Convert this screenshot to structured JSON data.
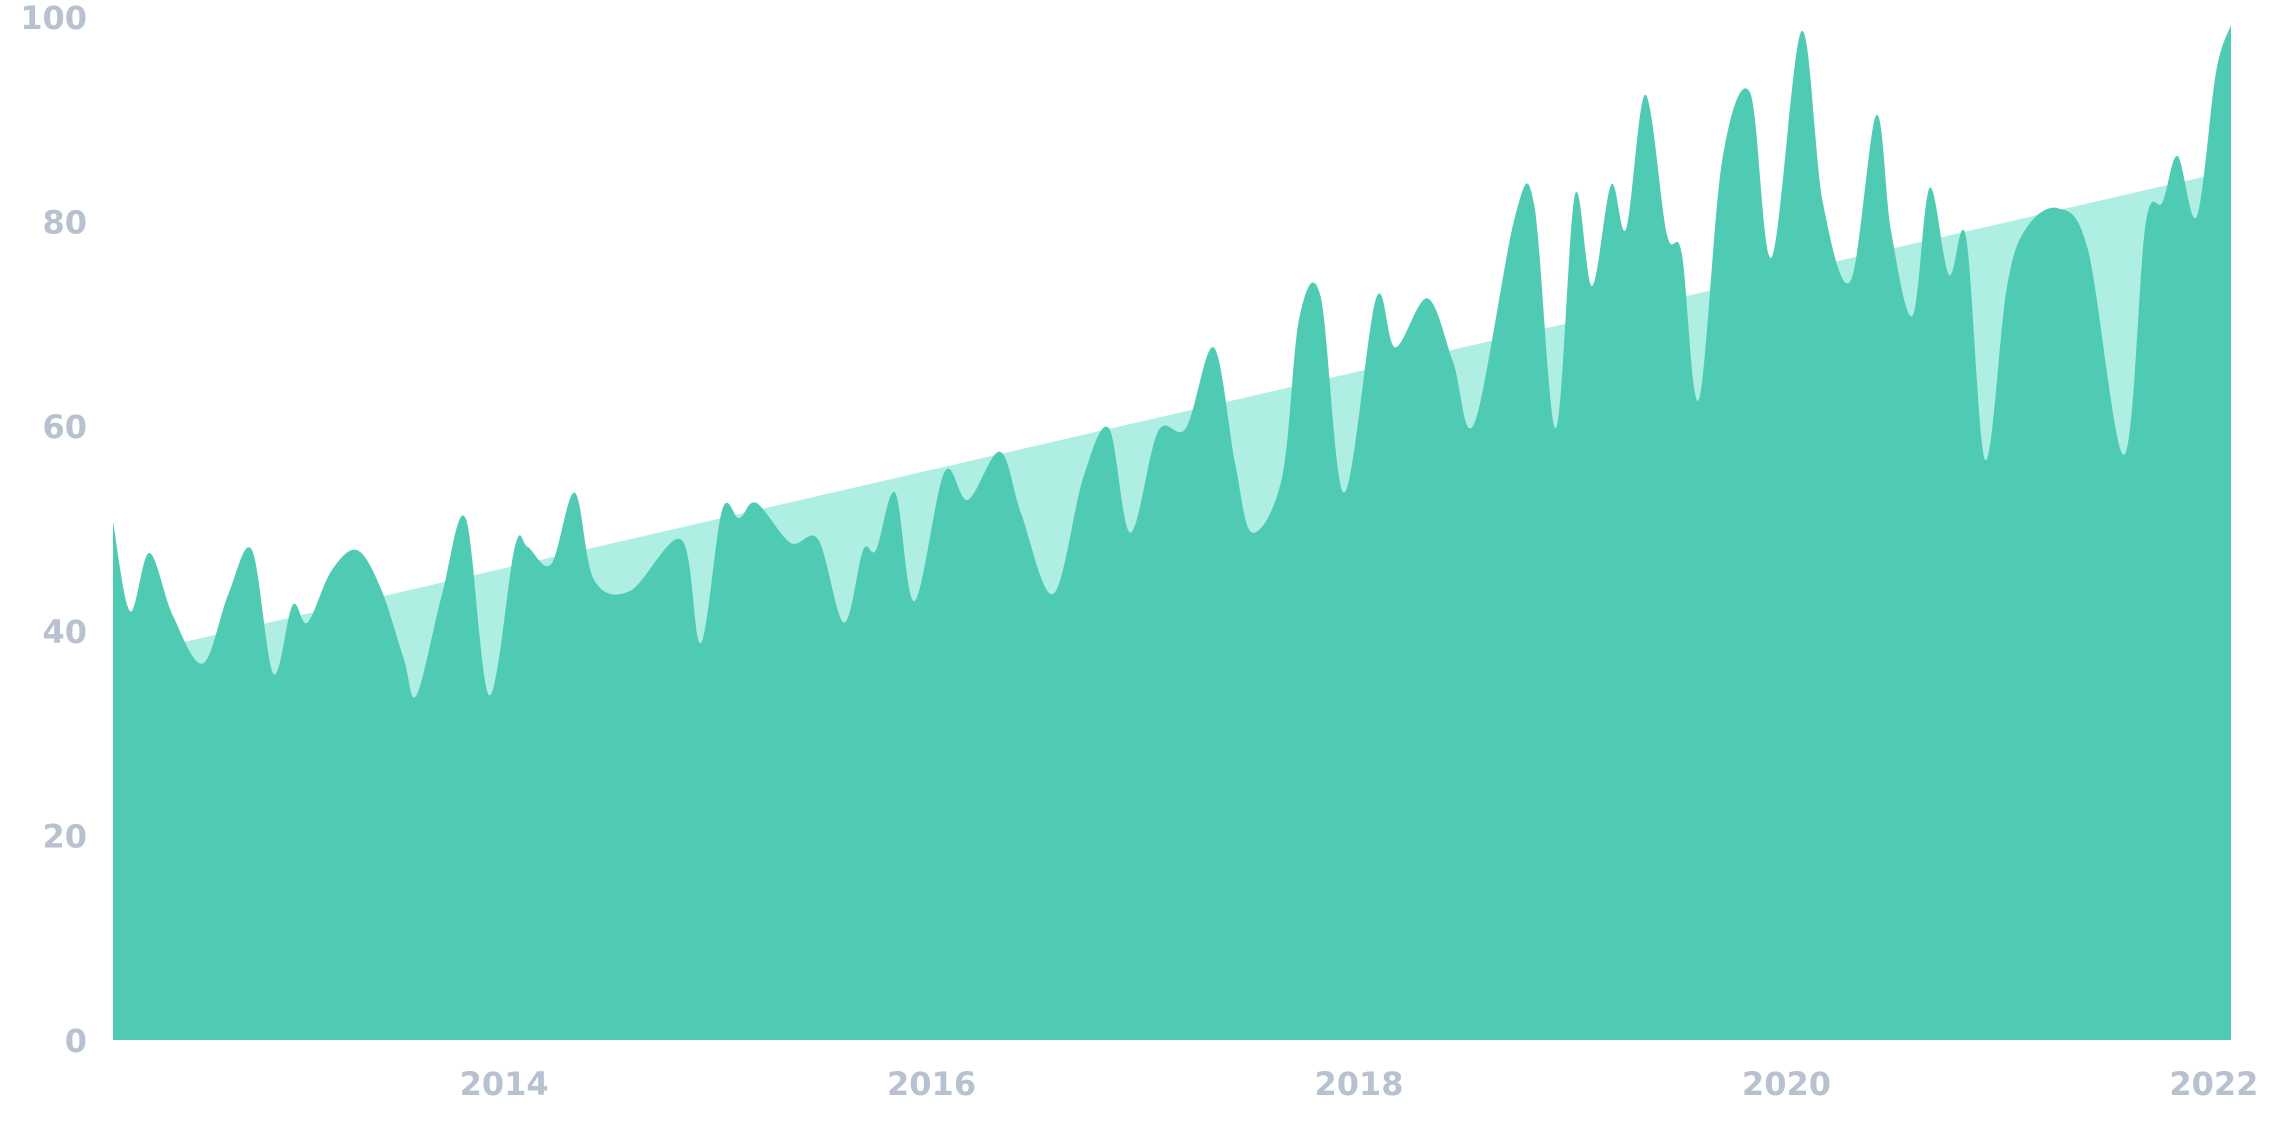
{
  "chart_data": {
    "type": "area",
    "xlim": [
      2012.17,
      2022.08
    ],
    "xticks": [
      2014,
      2016,
      2018,
      2020,
      2022
    ],
    "ylim": [
      0,
      100
    ],
    "yticks": [
      0,
      20,
      40,
      60,
      80,
      100
    ],
    "series": [
      {
        "color": "#aeeee3",
        "x": [
          2012.17,
          2022.08
        ],
        "values": [
          37.3,
          85
        ]
      },
      {
        "color": "#4ecbb2",
        "x": [
          2012.17,
          2012.25,
          2012.34,
          2012.45,
          2012.59,
          2012.71,
          2012.82,
          2012.92,
          2013.01,
          2013.08,
          2013.19,
          2013.31,
          2013.42,
          2013.53,
          2013.59,
          2013.71,
          2013.82,
          2013.93,
          2014.05,
          2014.11,
          2014.22,
          2014.33,
          2014.42,
          2014.59,
          2014.83,
          2014.92,
          2015.02,
          2015.1,
          2015.18,
          2015.34,
          2015.47,
          2015.59,
          2015.68,
          2015.74,
          2015.83,
          2015.92,
          2016.06,
          2016.17,
          2016.32,
          2016.42,
          2016.57,
          2016.71,
          2016.83,
          2016.93,
          2017.06,
          2017.19,
          2017.32,
          2017.42,
          2017.5,
          2017.64,
          2017.72,
          2017.82,
          2017.93,
          2018.08,
          2018.17,
          2018.32,
          2018.44,
          2018.54,
          2018.73,
          2018.82,
          2018.92,
          2019.01,
          2019.09,
          2019.18,
          2019.25,
          2019.34,
          2019.44,
          2019.51,
          2019.59,
          2019.7,
          2019.83,
          2019.93,
          2020.07,
          2020.17,
          2020.3,
          2020.42,
          2020.49,
          2020.59,
          2020.67,
          2020.76,
          2020.84,
          2020.93,
          2021.03,
          2021.12,
          2021.27,
          2021.41,
          2021.58,
          2021.68,
          2021.76,
          2021.83,
          2021.92,
          2022.01,
          2022.08
        ],
        "values": [
          50.7,
          41.9,
          47.6,
          41.5,
          36.8,
          43.6,
          47.9,
          35.8,
          42.5,
          40.8,
          45.8,
          47.9,
          44.3,
          37.3,
          33.7,
          43.6,
          51.0,
          33.7,
          48.2,
          48.2,
          46.5,
          53.5,
          45.0,
          43.9,
          48.9,
          38.8,
          51.8,
          51.0,
          52.5,
          48.6,
          48.9,
          40.8,
          47.9,
          47.9,
          53.5,
          42.9,
          55.5,
          52.8,
          57.5,
          51.4,
          43.6,
          55.0,
          59.8,
          49.6,
          59.5,
          59.8,
          67.7,
          56.4,
          49.6,
          55.0,
          70.5,
          72.7,
          53.5,
          72.5,
          67.7,
          72.5,
          66.3,
          60.3,
          80.5,
          81.6,
          59.8,
          82.6,
          73.7,
          83.6,
          79.3,
          92.4,
          78.8,
          76.9,
          62.6,
          86.1,
          92.6,
          76.5,
          98.6,
          81.9,
          74.2,
          90.4,
          79.0,
          70.8,
          83.3,
          74.8,
          78.5,
          56.7,
          73.4,
          79.3,
          81.3,
          77.3,
          57.2,
          79.7,
          81.9,
          86.4,
          80.5,
          94.6,
          99.2
        ]
      }
    ]
  }
}
